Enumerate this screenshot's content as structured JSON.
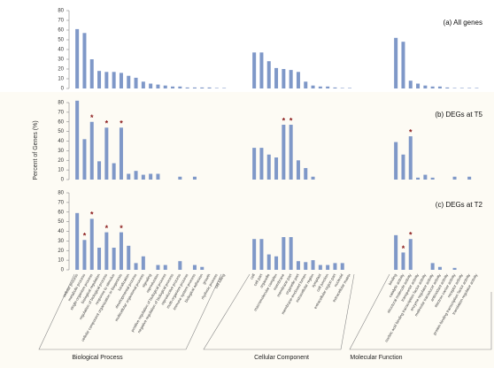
{
  "y_label": "Percent of Genes (%)",
  "groups": [
    {
      "label": "Biological Process",
      "categories": [
        "cellular process",
        "metabolic process",
        "single-organism process",
        "biological regulation",
        "regulation of biological process",
        "response to stimulus",
        "cellular component organization or biogenesis",
        "localization",
        "developmental process",
        "multicellular organismal process",
        "signaling",
        "reproduction",
        "positive regulation of biological process",
        "negative regulation of biological process",
        "reproductive process",
        "multi-organism process",
        "immune system process",
        "biological adhesion",
        "growth",
        "rhythmic process",
        "cell killing"
      ]
    },
    {
      "label": "Cellular Component",
      "categories": [
        "cell",
        "cell part",
        "organelle",
        "macromolecular complex",
        "membrane",
        "membrane part",
        "organelle part",
        "membrane-enclosed lumen",
        "extracellular region",
        "symplast",
        "cell junction",
        "extracellular region part",
        "nucleoid",
        "extracellular matrix"
      ]
    },
    {
      "label": "Molecular Function",
      "categories": [
        "binding",
        "catalytic activity",
        "structural molecule activity",
        "transporter activity",
        "nucleic acid binding transcription factor activity",
        "enzyme regulator activity",
        "molecular transducer activity",
        "antioxidant activity",
        "electron carrier activity",
        "receptor activity",
        "protein binding transcription factor activity",
        "translation regulator activity"
      ]
    }
  ],
  "chart_data": [
    {
      "type": "bar",
      "title": "(a) All genes",
      "color": "#7f98c8",
      "ylim": [
        0,
        80
      ],
      "yticks": [
        0,
        10,
        20,
        30,
        40,
        50,
        60,
        70,
        80
      ],
      "annotation": "*",
      "annotated": [],
      "values": [
        61,
        57,
        30,
        18,
        17,
        17,
        16,
        13,
        11,
        7,
        5,
        4,
        3,
        2,
        2,
        1,
        1,
        1,
        1,
        0.5,
        0.5,
        37,
        37,
        28,
        21,
        20,
        19,
        17,
        7,
        3,
        2,
        2,
        1,
        0.5,
        0.5,
        52,
        48,
        8,
        5,
        3,
        2,
        2,
        1,
        0.5,
        0.5,
        0.5,
        0.5
      ]
    },
    {
      "type": "bar",
      "title": "(b) DEGs at T5",
      "color": "#7f98c8",
      "ylim": [
        0,
        80
      ],
      "yticks": [
        0,
        10,
        20,
        30,
        40,
        50,
        60,
        70,
        80
      ],
      "annotation": "*",
      "annotated": [
        2,
        4,
        6,
        25,
        26,
        37
      ],
      "values": [
        82,
        42,
        60,
        19,
        54,
        17,
        54,
        6,
        9,
        5,
        6,
        6,
        0,
        0,
        3,
        0,
        3,
        0,
        0,
        0,
        0,
        33,
        33,
        26,
        23,
        57,
        57,
        20,
        12,
        3,
        0,
        0,
        0,
        0,
        0,
        39,
        26,
        45,
        2,
        5,
        2,
        0,
        0,
        3,
        0,
        3,
        0
      ]
    },
    {
      "type": "bar",
      "title": "(c) DEGs at T2",
      "color": "#7f98c8",
      "ylim": [
        0,
        80
      ],
      "yticks": [
        0,
        10,
        20,
        30,
        40,
        50,
        60,
        70,
        80
      ],
      "annotation": "*",
      "annotated": [
        1,
        2,
        4,
        6,
        36,
        37
      ],
      "values": [
        59,
        31,
        53,
        23,
        39,
        23,
        39,
        25,
        7,
        14,
        0,
        5,
        5,
        0,
        9,
        0,
        5,
        3,
        0,
        0,
        0,
        32,
        32,
        16,
        14,
        34,
        34,
        9,
        8,
        10,
        5,
        5,
        7,
        7,
        0,
        36,
        18,
        32,
        0,
        0,
        7,
        3,
        0,
        2,
        0,
        0,
        0
      ]
    }
  ]
}
